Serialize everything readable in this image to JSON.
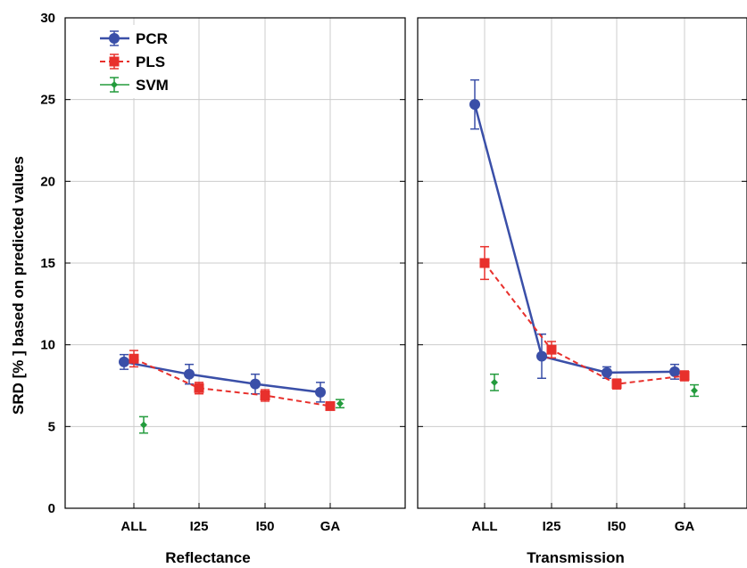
{
  "chart_data": {
    "type": "line",
    "ylabel": "SRD [% ] based on predicted values",
    "ylim": [
      0,
      30
    ],
    "yticks": [
      0,
      5,
      10,
      15,
      20,
      25,
      30
    ],
    "grid": true,
    "legend": {
      "placement": "top-left",
      "entries": [
        "PCR",
        "PLS",
        "SVM"
      ]
    },
    "categories": [
      "ALL",
      "I25",
      "I50",
      "GA"
    ],
    "colors": {
      "PCR": "#3a4fa8",
      "PLS": "#e8302c",
      "SVM": "#239b3c"
    },
    "panels": [
      {
        "xlabel": "Reflectance",
        "series": [
          {
            "name": "PCR",
            "values": [
              8.95,
              8.2,
              7.6,
              7.1
            ],
            "err": [
              0.45,
              0.6,
              0.6,
              0.6
            ],
            "line": "solid"
          },
          {
            "name": "PLS",
            "values": [
              9.15,
              7.35,
              6.9,
              6.25
            ],
            "err": [
              0.5,
              0.35,
              0.35,
              0.2
            ],
            "line": "dashed"
          },
          {
            "name": "SVM",
            "values": [
              5.1,
              null,
              null,
              6.4
            ],
            "err": [
              0.5,
              null,
              null,
              0.25
            ],
            "line": "none"
          }
        ]
      },
      {
        "xlabel": "Transmission",
        "series": [
          {
            "name": "PCR",
            "values": [
              24.7,
              9.3,
              8.3,
              8.35
            ],
            "err": [
              1.5,
              1.35,
              0.35,
              0.45
            ],
            "line": "solid"
          },
          {
            "name": "PLS",
            "values": [
              15.0,
              9.7,
              7.6,
              8.1
            ],
            "err": [
              1.0,
              0.5,
              0.3,
              0.3
            ],
            "line": "dashed"
          },
          {
            "name": "SVM",
            "values": [
              7.7,
              null,
              null,
              7.2
            ],
            "err": [
              0.5,
              null,
              null,
              0.35
            ],
            "line": "none"
          }
        ]
      }
    ]
  }
}
